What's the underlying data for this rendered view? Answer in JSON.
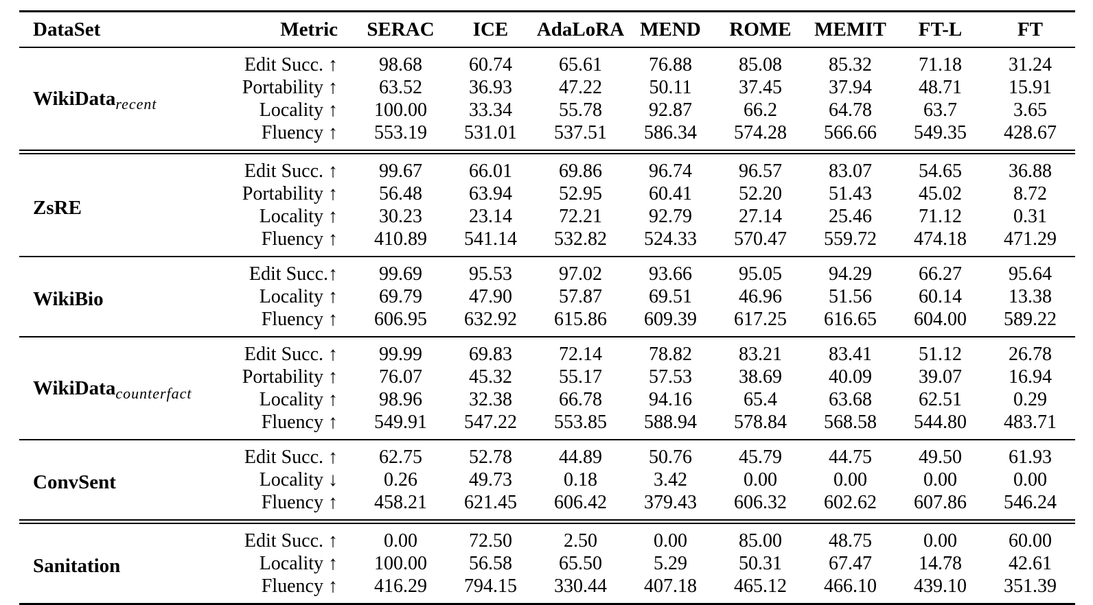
{
  "table": {
    "columns": {
      "dataset": "DataSet",
      "metric": "Metric",
      "methods": [
        "SERAC",
        "ICE",
        "AdaLoRA",
        "MEND",
        "ROME",
        "MEMIT",
        "FT-L",
        "FT"
      ]
    },
    "groups": [
      {
        "dataset": "WikiData",
        "subscript": "recent",
        "rule_after": "double",
        "rows": [
          {
            "metric": "Edit Succ. ↑",
            "values": [
              "98.68",
              "60.74",
              "65.61",
              "76.88",
              "85.08",
              "85.32",
              "71.18",
              "31.24"
            ]
          },
          {
            "metric": "Portability ↑",
            "values": [
              "63.52",
              "36.93",
              "47.22",
              "50.11",
              "37.45",
              "37.94",
              "48.71",
              "15.91"
            ]
          },
          {
            "metric": "Locality ↑",
            "values": [
              "100.00",
              "33.34",
              "55.78",
              "92.87",
              "66.2",
              "64.78",
              "63.7",
              "3.65"
            ]
          },
          {
            "metric": "Fluency ↑",
            "values": [
              "553.19",
              "531.01",
              "537.51",
              "586.34",
              "574.28",
              "566.66",
              "549.35",
              "428.67"
            ]
          }
        ]
      },
      {
        "dataset": "ZsRE",
        "subscript": "",
        "rule_after": "single",
        "rows": [
          {
            "metric": "Edit Succ. ↑",
            "values": [
              "99.67",
              "66.01",
              "69.86",
              "96.74",
              "96.57",
              "83.07",
              "54.65",
              "36.88"
            ]
          },
          {
            "metric": "Portability ↑",
            "values": [
              "56.48",
              "63.94",
              "52.95",
              "60.41",
              "52.20",
              "51.43",
              "45.02",
              "8.72"
            ]
          },
          {
            "metric": "Locality ↑",
            "values": [
              "30.23",
              "23.14",
              "72.21",
              "92.79",
              "27.14",
              "25.46",
              "71.12",
              "0.31"
            ]
          },
          {
            "metric": "Fluency ↑",
            "values": [
              "410.89",
              "541.14",
              "532.82",
              "524.33",
              "570.47",
              "559.72",
              "474.18",
              "471.29"
            ]
          }
        ]
      },
      {
        "dataset": "WikiBio",
        "subscript": "",
        "rule_after": "single",
        "rows": [
          {
            "metric": "Edit Succ.↑",
            "values": [
              "99.69",
              "95.53",
              "97.02",
              "93.66",
              "95.05",
              "94.29",
              "66.27",
              "95.64"
            ]
          },
          {
            "metric": "Locality ↑",
            "values": [
              "69.79",
              "47.90",
              "57.87",
              "69.51",
              "46.96",
              "51.56",
              "60.14",
              "13.38"
            ]
          },
          {
            "metric": "Fluency ↑",
            "values": [
              "606.95",
              "632.92",
              "615.86",
              "609.39",
              "617.25",
              "616.65",
              "604.00",
              "589.22"
            ]
          }
        ]
      },
      {
        "dataset": "WikiData",
        "subscript": "counterfact",
        "rule_after": "single",
        "rows": [
          {
            "metric": "Edit Succ. ↑",
            "values": [
              "99.99",
              "69.83",
              "72.14",
              "78.82",
              "83.21",
              "83.41",
              "51.12",
              "26.78"
            ]
          },
          {
            "metric": "Portability ↑",
            "values": [
              "76.07",
              "45.32",
              "55.17",
              "57.53",
              "38.69",
              "40.09",
              "39.07",
              "16.94"
            ]
          },
          {
            "metric": "Locality ↑",
            "values": [
              "98.96",
              "32.38",
              "66.78",
              "94.16",
              "65.4",
              "63.68",
              "62.51",
              "0.29"
            ]
          },
          {
            "metric": "Fluency ↑",
            "values": [
              "549.91",
              "547.22",
              "553.85",
              "588.94",
              "578.84",
              "568.58",
              "544.80",
              "483.71"
            ]
          }
        ]
      },
      {
        "dataset": "ConvSent",
        "subscript": "",
        "rule_after": "double",
        "rows": [
          {
            "metric": "Edit Succ. ↑",
            "values": [
              "62.75",
              "52.78",
              "44.89",
              "50.76",
              "45.79",
              "44.75",
              "49.50",
              "61.93"
            ]
          },
          {
            "metric": "Locality ↓",
            "values": [
              "0.26",
              "49.73",
              "0.18",
              "3.42",
              "0.00",
              "0.00",
              "0.00",
              "0.00"
            ]
          },
          {
            "metric": "Fluency ↑",
            "values": [
              "458.21",
              "621.45",
              "606.42",
              "379.43",
              "606.32",
              "602.62",
              "607.86",
              "546.24"
            ]
          }
        ]
      },
      {
        "dataset": "Sanitation",
        "subscript": "",
        "rule_after": "none",
        "rows": [
          {
            "metric": "Edit Succ. ↑",
            "values": [
              "0.00",
              "72.50",
              "2.50",
              "0.00",
              "85.00",
              "48.75",
              "0.00",
              "60.00"
            ]
          },
          {
            "metric": "Locality ↑",
            "values": [
              "100.00",
              "56.58",
              "65.50",
              "5.29",
              "50.31",
              "67.47",
              "14.78",
              "42.61"
            ]
          },
          {
            "metric": "Fluency ↑",
            "values": [
              "416.29",
              "794.15",
              "330.44",
              "407.18",
              "465.12",
              "466.10",
              "439.10",
              "351.39"
            ]
          }
        ]
      }
    ]
  }
}
